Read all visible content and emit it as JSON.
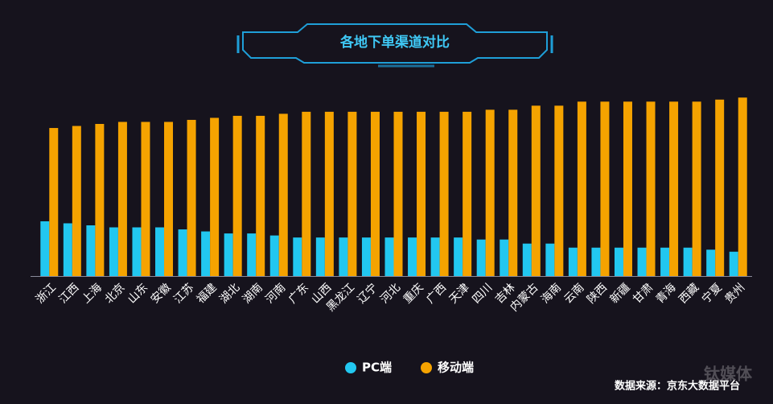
{
  "chart_data": {
    "type": "bar",
    "title": "各地下单渠道对比",
    "categories": [
      "浙江",
      "江西",
      "上海",
      "北京",
      "山东",
      "安徽",
      "江苏",
      "福建",
      "湖北",
      "湖南",
      "河南",
      "广东",
      "山西",
      "黑龙江",
      "辽宁",
      "河北",
      "重庆",
      "广西",
      "天津",
      "四川",
      "吉林",
      "内蒙古",
      "海南",
      "云南",
      "陕西",
      "新疆",
      "甘肃",
      "青海",
      "西藏",
      "宁夏",
      "贵州"
    ],
    "series": [
      {
        "name": "PC端",
        "color": "#22c7f0",
        "values": [
          27,
          26,
          25,
          24,
          24,
          24,
          23,
          22,
          21,
          21,
          20,
          19,
          19,
          19,
          19,
          19,
          19,
          19,
          19,
          18,
          18,
          16,
          16,
          14,
          14,
          14,
          14,
          14,
          14,
          13,
          12
        ]
      },
      {
        "name": "移动端",
        "color": "#f5a300",
        "values": [
          73,
          74,
          75,
          76,
          76,
          76,
          77,
          78,
          79,
          79,
          80,
          81,
          81,
          81,
          81,
          81,
          81,
          81,
          81,
          82,
          82,
          84,
          84,
          86,
          86,
          86,
          86,
          86,
          86,
          87,
          88
        ]
      }
    ],
    "ylim": [
      0,
      100
    ],
    "source": "数据来源：京东大数据平台",
    "watermark": "钛媒体"
  }
}
